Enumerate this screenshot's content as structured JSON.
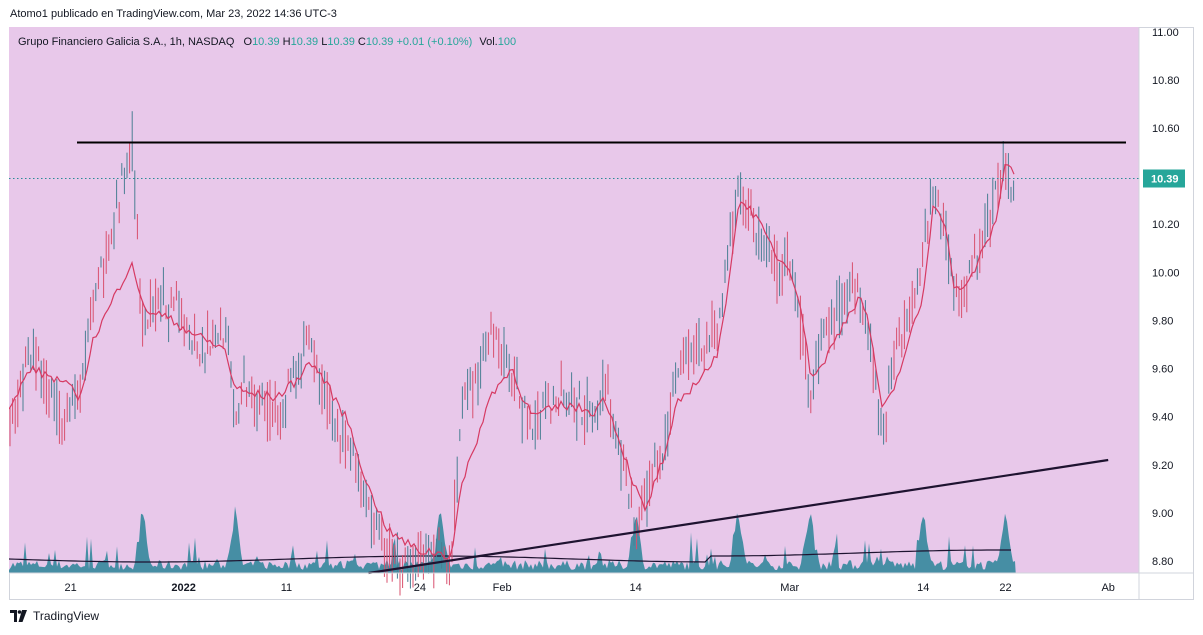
{
  "header": {
    "publisher": "Atomo1 publicado en TradingView.com, Mar 23, 2022 14:36 UTC-3"
  },
  "legend": {
    "symbol": "Grupo Financiero Galicia S.A., 1h, NASDAQ",
    "o_label": "O",
    "o_value": "10.39",
    "h_label": "H",
    "h_value": "10.39",
    "l_label": "L",
    "l_value": "10.39",
    "c_label": "C",
    "c_value": "10.39",
    "change": "+0.01 (+0.10%)",
    "vol_label": "Vol.",
    "vol_value": "100"
  },
  "footer": {
    "brand": "TradingView"
  },
  "colors": {
    "background": "#e8c8ea",
    "candle": "#4a7f93",
    "candle_down": "#d8506e",
    "moving_average": "#d63a63",
    "volume": "#3d8ba0",
    "trendline": "#1e1330",
    "price_badge": "#26a69a"
  },
  "chart_data": {
    "type": "line",
    "title": "Grupo Financiero Galicia S.A., 1h, NASDAQ",
    "ylim": [
      8.75,
      11.02
    ],
    "y_ticks": [
      "11.00",
      "10.80",
      "10.60",
      "10.40",
      "10.20",
      "10.00",
      "9.80",
      "9.60",
      "9.40",
      "9.20",
      "9.00",
      "8.80"
    ],
    "x_ticks": [
      "21",
      "2022",
      "11",
      "24",
      "Feb",
      "14",
      "Mar",
      "14",
      "22",
      "Ab"
    ],
    "last_price": "10.39",
    "resistance_level": 10.54,
    "support_trendline": {
      "from": [
        "Jan 19",
        8.75
      ],
      "to": [
        "Apr 1",
        9.22
      ]
    },
    "price_path": [
      {
        "date": "Dec 15",
        "close": 9.35
      },
      {
        "date": "Dec 17",
        "close": 9.68
      },
      {
        "date": "Dec 20",
        "close": 9.4
      },
      {
        "date": "Dec 22",
        "close": 9.5
      },
      {
        "date": "Dec 23",
        "close": 9.8
      },
      {
        "date": "Dec 27",
        "close": 10.55
      },
      {
        "date": "Dec 28",
        "close": 9.78
      },
      {
        "date": "Dec 30",
        "close": 9.88
      },
      {
        "date": "Jan 3",
        "close": 9.7
      },
      {
        "date": "Jan 5",
        "close": 9.78
      },
      {
        "date": "Jan 6",
        "close": 9.38
      },
      {
        "date": "Jan 7",
        "close": 9.52
      },
      {
        "date": "Jan 10",
        "close": 9.4
      },
      {
        "date": "Jan 12",
        "close": 9.6
      },
      {
        "date": "Jan 13",
        "close": 9.7
      },
      {
        "date": "Jan 14",
        "close": 9.58
      },
      {
        "date": "Jan 17",
        "close": 9.25
      },
      {
        "date": "Jan 19",
        "close": 9.0
      },
      {
        "date": "Jan 21",
        "close": 8.8
      },
      {
        "date": "Jan 24",
        "close": 8.8
      },
      {
        "date": "Jan 25",
        "close": 8.85
      },
      {
        "date": "Jan 27",
        "close": 8.8
      },
      {
        "date": "Jan 28",
        "close": 9.4
      },
      {
        "date": "Jan 31",
        "close": 9.72
      },
      {
        "date": "Feb 2",
        "close": 9.6
      },
      {
        "date": "Feb 3",
        "close": 9.42
      },
      {
        "date": "Feb 4",
        "close": 9.35
      },
      {
        "date": "Feb 7",
        "close": 9.52
      },
      {
        "date": "Feb 8",
        "close": 9.45
      },
      {
        "date": "Feb 10",
        "close": 9.4
      },
      {
        "date": "Feb 11",
        "close": 9.55
      },
      {
        "date": "Feb 14",
        "close": 8.92
      },
      {
        "date": "Feb 15",
        "close": 9.05
      },
      {
        "date": "Feb 16",
        "close": 9.25
      },
      {
        "date": "Feb 17",
        "close": 9.3
      },
      {
        "date": "Feb 18",
        "close": 9.62
      },
      {
        "date": "Feb 22",
        "close": 9.75
      },
      {
        "date": "Feb 23",
        "close": 10.1
      },
      {
        "date": "Feb 24",
        "close": 10.35
      },
      {
        "date": "Feb 25",
        "close": 10.25
      },
      {
        "date": "Feb 28",
        "close": 9.98
      },
      {
        "date": "Mar 1",
        "close": 10.05
      },
      {
        "date": "Mar 2",
        "close": 9.8
      },
      {
        "date": "Mar 3",
        "close": 9.45
      },
      {
        "date": "Mar 4",
        "close": 9.7
      },
      {
        "date": "Mar 7",
        "close": 9.95
      },
      {
        "date": "Mar 8",
        "close": 9.9
      },
      {
        "date": "Mar 9",
        "close": 9.65
      },
      {
        "date": "Mar 10",
        "close": 9.35
      },
      {
        "date": "Mar 11",
        "close": 9.6
      },
      {
        "date": "Mar 14",
        "close": 10.1
      },
      {
        "date": "Mar 15",
        "close": 10.38
      },
      {
        "date": "Mar 16",
        "close": 10.2
      },
      {
        "date": "Mar 17",
        "close": 9.9
      },
      {
        "date": "Mar 18",
        "close": 9.9
      },
      {
        "date": "Mar 21",
        "close": 10.3
      },
      {
        "date": "Mar 22",
        "close": 10.45
      },
      {
        "date": "Mar 23",
        "close": 10.39
      }
    ],
    "series": [
      {
        "values": [
          9.42,
          9.6,
          9.55,
          9.48,
          9.7,
          10.05,
          9.85,
          9.82,
          9.72,
          9.68,
          9.52,
          9.5,
          9.48,
          9.55,
          9.62,
          9.6,
          9.38,
          9.1,
          8.92,
          8.84,
          8.84,
          8.82,
          9.1,
          9.5,
          9.6,
          9.48,
          9.4,
          9.45,
          9.44,
          9.42,
          9.48,
          9.1,
          9.0,
          9.15,
          9.25,
          9.45,
          9.65,
          9.95,
          10.28,
          10.28,
          10.05,
          10.02,
          9.88,
          9.58,
          9.6,
          9.85,
          9.9,
          9.72,
          9.42,
          9.5,
          9.9,
          10.3,
          10.22,
          9.95,
          9.92,
          10.2,
          10.45,
          10.42
        ]
      }
    ],
    "volume_peaks": [
      "Dec 28",
      "Jan 6",
      "Jan 26",
      "Feb 14",
      "Feb 24",
      "Mar 3",
      "Mar 14",
      "Mar 22"
    ]
  }
}
